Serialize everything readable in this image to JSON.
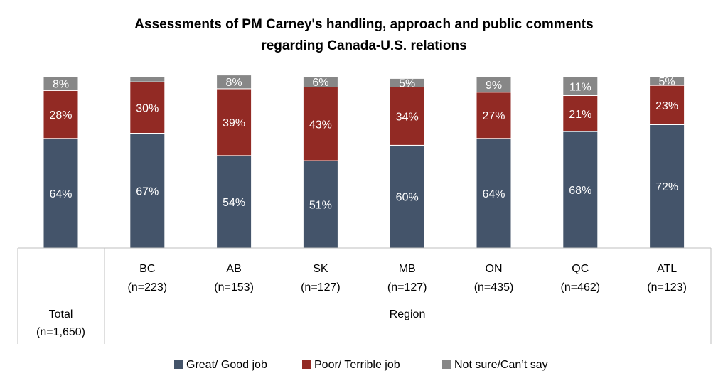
{
  "chart_data": {
    "type": "bar",
    "stacked": true,
    "title": "Assessments of PM Carney's handling, approach and public comments regarding Canada-U.S. relations",
    "title_lines": [
      "Assessments of PM Carney's handling, approach and public comments",
      "regarding Canada-U.S. relations"
    ],
    "groups": [
      {
        "name": "",
        "label": "Total",
        "categories": [
          "Total (n=1,650)"
        ]
      },
      {
        "name": "Region",
        "label": "Region",
        "categories": [
          "BC (n=223)",
          "AB (n=153)",
          "SK (n=127)",
          "MB (n=127)",
          "ON (n=435)",
          "QC (n=462)",
          "ATL (n=123)"
        ]
      }
    ],
    "categories": [
      "Total",
      "BC",
      "AB",
      "SK",
      "MB",
      "ON",
      "QC",
      "ATL"
    ],
    "category_n": [
      "(n=1,650)",
      "(n=223)",
      "(n=153)",
      "(n=127)",
      "(n=127)",
      "(n=435)",
      "(n=462)",
      "(n=123)"
    ],
    "series": [
      {
        "name": "Great/ Good job",
        "color": "#44546a",
        "values": [
          64,
          67,
          54,
          51,
          60,
          64,
          68,
          72
        ]
      },
      {
        "name": "Poor/ Terrible job",
        "color": "#922a24",
        "values": [
          28,
          30,
          39,
          43,
          34,
          27,
          21,
          23
        ]
      },
      {
        "name": "Not sure/Can’t say",
        "color": "#878787",
        "values": [
          8,
          3,
          8,
          6,
          5,
          9,
          11,
          5
        ]
      }
    ],
    "labels": [
      [
        "64%",
        "67%",
        "54%",
        "51%",
        "60%",
        "64%",
        "68%",
        "72%"
      ],
      [
        "28%",
        "30%",
        "39%",
        "43%",
        "34%",
        "27%",
        "21%",
        "23%"
      ],
      [
        "8%",
        "",
        "8%",
        "6%",
        "5%",
        "9%",
        "11%",
        "5%"
      ]
    ],
    "ylim": [
      0,
      100
    ],
    "unit": "%",
    "grid": false,
    "legend_position": "bottom"
  }
}
